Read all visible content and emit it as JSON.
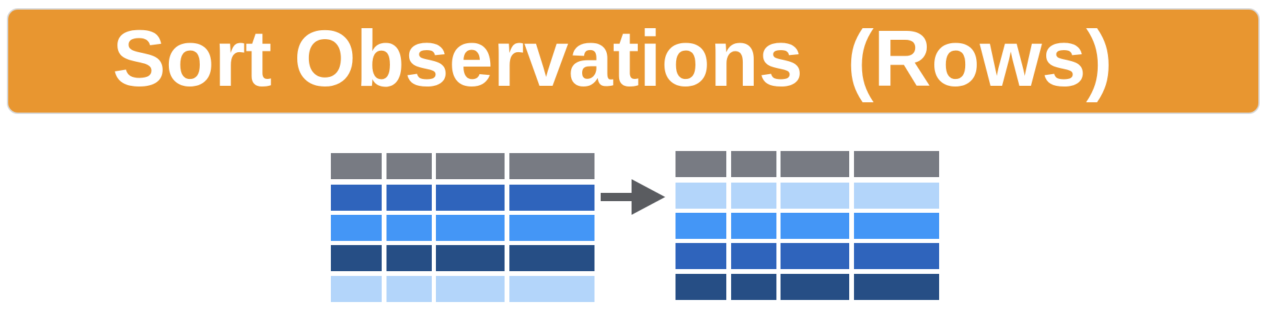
{
  "banner": {
    "title": "Sort Observations  (Rows)",
    "color": "#E89630",
    "text_color": "#FFFFFF"
  },
  "diagram": {
    "header_color": "#787B83",
    "arrow_color": "#5A5C60",
    "before": {
      "row_colors": [
        "#787B83",
        "#2F64BC",
        "#4496F6",
        "#264E85",
        "#B3D5FA"
      ]
    },
    "after": {
      "row_colors": [
        "#787B83",
        "#B3D5FA",
        "#4496F6",
        "#2F64BC",
        "#264E85"
      ]
    }
  }
}
